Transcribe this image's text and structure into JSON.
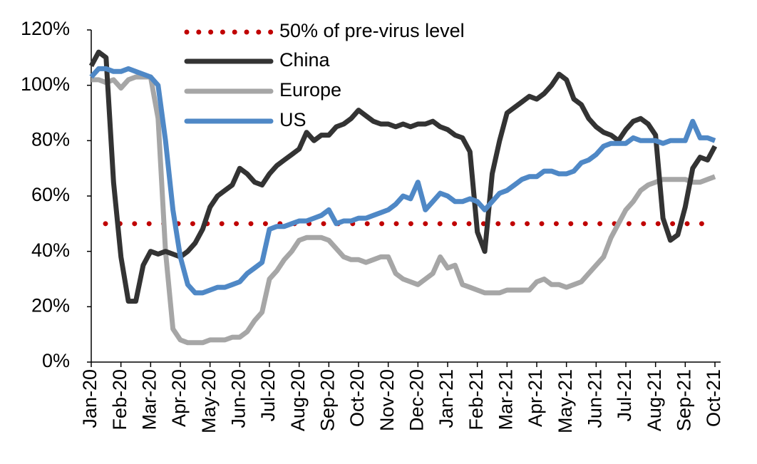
{
  "chart_data": {
    "type": "line",
    "categories": [
      "Jan-20",
      null,
      null,
      null,
      "Feb-20",
      null,
      null,
      null,
      "Mar-20",
      null,
      null,
      null,
      "Apr-20",
      null,
      null,
      null,
      "May-20",
      null,
      null,
      null,
      "Jun-20",
      null,
      null,
      null,
      "Jul-20",
      null,
      null,
      null,
      "Aug-20",
      null,
      null,
      null,
      "Sep-20",
      null,
      null,
      null,
      "Oct-20",
      null,
      null,
      null,
      "Nov-20",
      null,
      null,
      null,
      "Dec-20",
      null,
      null,
      null,
      "Jan-21",
      null,
      null,
      null,
      "Feb-21",
      null,
      null,
      null,
      "Mar-21",
      null,
      null,
      null,
      "Apr-21",
      null,
      null,
      null,
      "May-21",
      null,
      null,
      null,
      "Jun-21",
      null,
      null,
      null,
      "Jul-21",
      null,
      null,
      null,
      "Aug-21",
      null,
      null,
      null,
      "Sep-21",
      null,
      null,
      null,
      "Oct-21"
    ],
    "series": [
      {
        "name": "China",
        "color": "#333333",
        "values": [
          107,
          112,
          110,
          65,
          38,
          22,
          22,
          35,
          40,
          39,
          40,
          39,
          38,
          40,
          43,
          48,
          56,
          60,
          62,
          64,
          70,
          68,
          65,
          64,
          68,
          71,
          73,
          75,
          77,
          83,
          80,
          82,
          82,
          85,
          86,
          88,
          91,
          89,
          87,
          86,
          86,
          85,
          86,
          85,
          86,
          86,
          87,
          85,
          84,
          82,
          81,
          76,
          47,
          40,
          68,
          80,
          90,
          92,
          94,
          96,
          95,
          97,
          100,
          104,
          102,
          95,
          93,
          88,
          85,
          83,
          82,
          80,
          84,
          87,
          88,
          86,
          82,
          52,
          44,
          46,
          56,
          70,
          74,
          73,
          78
        ]
      },
      {
        "name": "Europe",
        "color": "#a6a6a6",
        "values": [
          102,
          102,
          101,
          102,
          99,
          102,
          103,
          103,
          103,
          88,
          40,
          12,
          8,
          7,
          7,
          7,
          8,
          8,
          8,
          9,
          9,
          11,
          15,
          18,
          30,
          33,
          37,
          40,
          44,
          45,
          45,
          45,
          44,
          41,
          38,
          37,
          37,
          36,
          37,
          38,
          38,
          32,
          30,
          29,
          28,
          30,
          32,
          38,
          34,
          35,
          28,
          27,
          26,
          25,
          25,
          25,
          26,
          26,
          26,
          26,
          29,
          30,
          28,
          28,
          27,
          28,
          29,
          32,
          35,
          38,
          45,
          50,
          55,
          58,
          62,
          64,
          65,
          66,
          66,
          66,
          66,
          65,
          65,
          66,
          67
        ]
      },
      {
        "name": "US",
        "color": "#4f88c6",
        "values": [
          103,
          106,
          106,
          105,
          105,
          106,
          105,
          104,
          103,
          100,
          80,
          55,
          38,
          28,
          25,
          25,
          26,
          27,
          27,
          28,
          29,
          32,
          34,
          36,
          48,
          49,
          49,
          50,
          51,
          51,
          52,
          53,
          55,
          50,
          51,
          51,
          52,
          52,
          53,
          54,
          55,
          57,
          60,
          59,
          65,
          55,
          58,
          61,
          60,
          58,
          58,
          59,
          58,
          55,
          58,
          61,
          62,
          64,
          66,
          67,
          67,
          69,
          69,
          68,
          68,
          69,
          72,
          73,
          75,
          78,
          79,
          79,
          79,
          81,
          80,
          80,
          80,
          79,
          80,
          80,
          80,
          87,
          81,
          81,
          80
        ]
      }
    ],
    "reference": {
      "value": 50,
      "label": "50% of pre-virus level",
      "color": "#c00000"
    },
    "ylim": [
      0,
      120
    ],
    "yticks": [
      {
        "value": 0,
        "label": "0%"
      },
      {
        "value": 20,
        "label": "20%"
      },
      {
        "value": 40,
        "label": "40%"
      },
      {
        "value": 60,
        "label": "60%"
      },
      {
        "value": 80,
        "label": "80%"
      },
      {
        "value": 100,
        "label": "100%"
      },
      {
        "value": 120,
        "label": "120%"
      }
    ],
    "grid": false
  }
}
